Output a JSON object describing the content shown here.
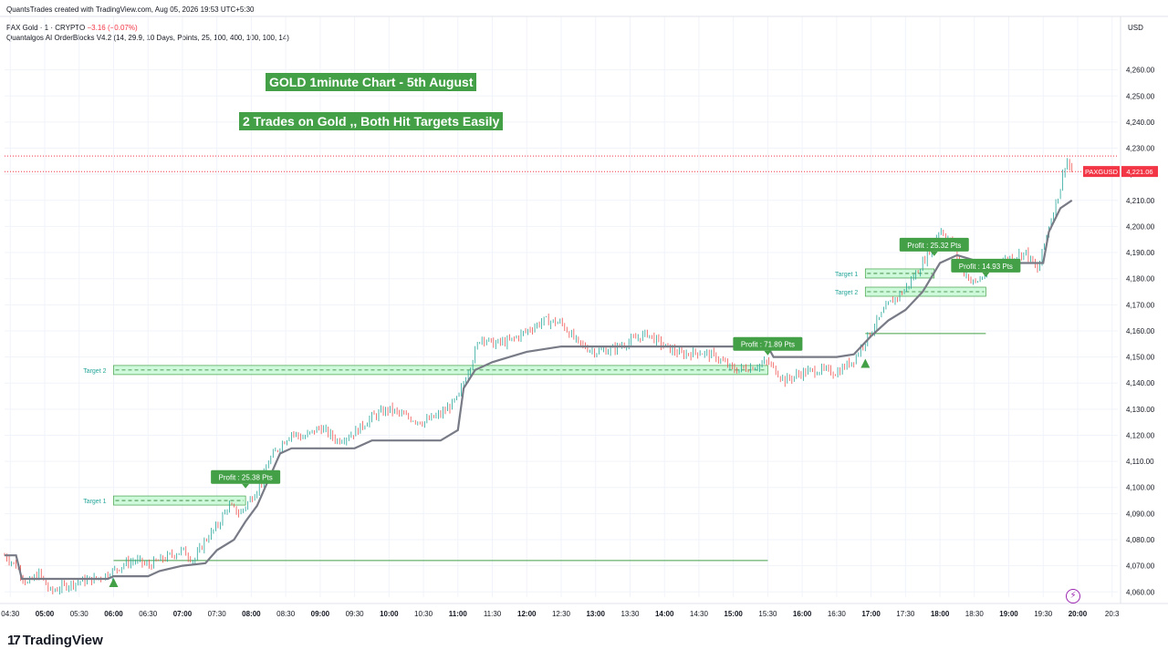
{
  "header": {
    "attribution": "QuantsTrades created with TradingView.com, Aug 05, 2026 19:53 UTC+5:30",
    "symbol": "PAX Gold · 1 · CRYPTO",
    "change": "−3.16 (−0.07%)",
    "indicator": "Quantalgos AI OrderBlocks V4.2 (14, 29.9, 10 Days, Points, 25, 100, 400, 100, 100, 14)"
  },
  "banners": {
    "title": "GOLD 1minute Chart - 5th August",
    "subtitle": "2 Trades on Gold ,, Both Hit Targets Easily"
  },
  "footer": {
    "brand": "TradingView",
    "logo_mark": "17"
  },
  "axis": {
    "currency": "USD",
    "current_symbol": "PAXGUSD",
    "current_price": "4,221.06"
  },
  "colors": {
    "up": "#26a69a",
    "down": "#ef5350",
    "target": "#43a047",
    "stair": "#787b86",
    "current": "#f23645",
    "banner": "#43a047"
  },
  "chart_data": {
    "type": "candlestick",
    "ylim": [
      4058,
      4270
    ],
    "y_ticks": [
      4060,
      4070,
      4080,
      4090,
      4100,
      4110,
      4120,
      4130,
      4140,
      4150,
      4160,
      4170,
      4180,
      4190,
      4200,
      4210,
      4220,
      4230,
      4240,
      4250,
      4260
    ],
    "y_tick_labels": [
      "4,060.00",
      "4,070.00",
      "4,080.00",
      "4,090.00",
      "4,100.00",
      "4,110.00",
      "4,120.00",
      "4,130.00",
      "4,140.00",
      "4,150.00",
      "4,160.00",
      "4,170.00",
      "4,180.00",
      "4,190.00",
      "4,200.00",
      "4,210.00",
      "4,220.00",
      "4,230.00",
      "4,240.00",
      "4,250.00",
      "4,260.00"
    ],
    "x_range": [
      "04:25",
      "20:35"
    ],
    "x_ticks": [
      {
        "t": "04:30",
        "label": "04:30",
        "bold": false
      },
      {
        "t": "05:00",
        "label": "05:00",
        "bold": true
      },
      {
        "t": "05:30",
        "label": "05:30",
        "bold": false
      },
      {
        "t": "06:00",
        "label": "06:00",
        "bold": true
      },
      {
        "t": "06:30",
        "label": "06:30",
        "bold": false
      },
      {
        "t": "07:00",
        "label": "07:00",
        "bold": true
      },
      {
        "t": "07:30",
        "label": "07:30",
        "bold": false
      },
      {
        "t": "08:00",
        "label": "08:00",
        "bold": true
      },
      {
        "t": "08:30",
        "label": "08:30",
        "bold": false
      },
      {
        "t": "09:00",
        "label": "09:00",
        "bold": true
      },
      {
        "t": "09:30",
        "label": "09:30",
        "bold": false
      },
      {
        "t": "10:00",
        "label": "10:00",
        "bold": true
      },
      {
        "t": "10:30",
        "label": "10:30",
        "bold": false
      },
      {
        "t": "11:00",
        "label": "11:00",
        "bold": true
      },
      {
        "t": "11:30",
        "label": "11:30",
        "bold": false
      },
      {
        "t": "12:00",
        "label": "12:00",
        "bold": true
      },
      {
        "t": "12:30",
        "label": "12:30",
        "bold": false
      },
      {
        "t": "13:00",
        "label": "13:00",
        "bold": true
      },
      {
        "t": "13:30",
        "label": "13:30",
        "bold": false
      },
      {
        "t": "14:00",
        "label": "14:00",
        "bold": true
      },
      {
        "t": "14:30",
        "label": "14:30",
        "bold": false
      },
      {
        "t": "15:00",
        "label": "15:00",
        "bold": true
      },
      {
        "t": "15:30",
        "label": "15:30",
        "bold": false
      },
      {
        "t": "16:00",
        "label": "16:00",
        "bold": true
      },
      {
        "t": "16:30",
        "label": "16:30",
        "bold": false
      },
      {
        "t": "17:00",
        "label": "17:00",
        "bold": true
      },
      {
        "t": "17:30",
        "label": "17:30",
        "bold": false
      },
      {
        "t": "18:00",
        "label": "18:00",
        "bold": true
      },
      {
        "t": "18:30",
        "label": "18:30",
        "bold": false
      },
      {
        "t": "19:00",
        "label": "19:00",
        "bold": true
      },
      {
        "t": "19:30",
        "label": "19:30",
        "bold": false
      },
      {
        "t": "20:00",
        "label": "20:00",
        "bold": true
      },
      {
        "t": "20:30",
        "label": "20:3",
        "bold": false
      }
    ],
    "price_path": [
      [
        "04:25",
        4074
      ],
      [
        "04:35",
        4070
      ],
      [
        "04:45",
        4063
      ],
      [
        "04:55",
        4067
      ],
      [
        "05:05",
        4060
      ],
      [
        "05:15",
        4062
      ],
      [
        "05:30",
        4064
      ],
      [
        "05:45",
        4065
      ],
      [
        "06:00",
        4068
      ],
      [
        "06:10",
        4071
      ],
      [
        "06:20",
        4072
      ],
      [
        "06:30",
        4070
      ],
      [
        "06:45",
        4073
      ],
      [
        "07:00",
        4076
      ],
      [
        "07:10",
        4072
      ],
      [
        "07:20",
        4080
      ],
      [
        "07:30",
        4085
      ],
      [
        "07:40",
        4093
      ],
      [
        "07:50",
        4090
      ],
      [
        "08:00",
        4096
      ],
      [
        "08:10",
        4103
      ],
      [
        "08:15",
        4110
      ],
      [
        "08:25",
        4116
      ],
      [
        "08:35",
        4121
      ],
      [
        "08:45",
        4119
      ],
      [
        "09:00",
        4123
      ],
      [
        "09:15",
        4118
      ],
      [
        "09:30",
        4121
      ],
      [
        "09:45",
        4127
      ],
      [
        "10:00",
        4130
      ],
      [
        "10:15",
        4127
      ],
      [
        "10:30",
        4125
      ],
      [
        "10:45",
        4128
      ],
      [
        "11:00",
        4134
      ],
      [
        "11:10",
        4146
      ],
      [
        "11:20",
        4158
      ],
      [
        "11:30",
        4155
      ],
      [
        "11:45",
        4156
      ],
      [
        "12:00",
        4160
      ],
      [
        "12:15",
        4164
      ],
      [
        "12:30",
        4163
      ],
      [
        "12:45",
        4155
      ],
      [
        "13:00",
        4152
      ],
      [
        "13:15",
        4153
      ],
      [
        "13:30",
        4156
      ],
      [
        "13:45",
        4159
      ],
      [
        "14:00",
        4154
      ],
      [
        "14:15",
        4151
      ],
      [
        "14:30",
        4152
      ],
      [
        "14:45",
        4150
      ],
      [
        "15:00",
        4145
      ],
      [
        "15:15",
        4146
      ],
      [
        "15:30",
        4148
      ],
      [
        "15:45",
        4141
      ],
      [
        "16:00",
        4144
      ],
      [
        "16:15",
        4145
      ],
      [
        "16:30",
        4144
      ],
      [
        "16:45",
        4149
      ],
      [
        "17:00",
        4160
      ],
      [
        "17:15",
        4170
      ],
      [
        "17:30",
        4176
      ],
      [
        "17:45",
        4186
      ],
      [
        "18:00",
        4199
      ],
      [
        "18:10",
        4194
      ],
      [
        "18:20",
        4183
      ],
      [
        "18:30",
        4178
      ],
      [
        "18:45",
        4184
      ],
      [
        "19:00",
        4188
      ],
      [
        "19:15",
        4190
      ],
      [
        "19:25",
        4183
      ],
      [
        "19:35",
        4200
      ],
      [
        "19:45",
        4215
      ],
      [
        "19:50",
        4226
      ],
      [
        "19:55",
        4221
      ]
    ],
    "stair_path": [
      [
        "04:25",
        4074
      ],
      [
        "04:35",
        4074
      ],
      [
        "04:40",
        4065
      ],
      [
        "05:00",
        4065
      ],
      [
        "05:15",
        4065
      ],
      [
        "05:55",
        4065
      ],
      [
        "06:00",
        4066
      ],
      [
        "06:30",
        4066
      ],
      [
        "06:40",
        4068
      ],
      [
        "07:00",
        4070
      ],
      [
        "07:20",
        4071
      ],
      [
        "07:30",
        4076
      ],
      [
        "07:45",
        4080
      ],
      [
        "07:55",
        4087
      ],
      [
        "08:05",
        4093
      ],
      [
        "08:15",
        4103
      ],
      [
        "08:25",
        4113
      ],
      [
        "08:35",
        4115
      ],
      [
        "09:15",
        4115
      ],
      [
        "09:30",
        4115
      ],
      [
        "09:45",
        4118
      ],
      [
        "10:30",
        4118
      ],
      [
        "10:45",
        4118
      ],
      [
        "11:00",
        4122
      ],
      [
        "11:05",
        4138
      ],
      [
        "11:15",
        4145
      ],
      [
        "11:30",
        4148
      ],
      [
        "11:45",
        4150
      ],
      [
        "12:00",
        4152
      ],
      [
        "12:30",
        4154
      ],
      [
        "15:30",
        4154
      ],
      [
        "15:35",
        4150
      ],
      [
        "16:30",
        4150
      ],
      [
        "16:45",
        4151
      ],
      [
        "17:00",
        4158
      ],
      [
        "17:15",
        4164
      ],
      [
        "17:30",
        4168
      ],
      [
        "17:45",
        4175
      ],
      [
        "18:00",
        4186
      ],
      [
        "18:15",
        4189
      ],
      [
        "18:30",
        4187
      ],
      [
        "18:45",
        4186
      ],
      [
        "19:30",
        4186
      ],
      [
        "19:35",
        4198
      ],
      [
        "19:45",
        4207
      ],
      [
        "19:55",
        4210
      ]
    ],
    "horizontal_lines": [
      {
        "price": 4072,
        "from": "06:00",
        "to": "15:30",
        "color": "#43a047"
      },
      {
        "price": 4159,
        "from": "16:55",
        "to": "18:40",
        "color": "#43a047"
      },
      {
        "price": 4221,
        "from": "04:25",
        "to": "20:35",
        "color": "#f23645",
        "dotted": true
      },
      {
        "price": 4227,
        "from": "04:25",
        "to": "20:35",
        "color": "#f23645",
        "dotted": true
      }
    ],
    "target_zones": [
      {
        "label": "Target 1",
        "from": "06:00",
        "to": "07:55",
        "price": 4095
      },
      {
        "label": "Target 2",
        "from": "06:00",
        "to": "15:30",
        "price": 4145
      },
      {
        "label": "Target 1",
        "from": "16:55",
        "to": "17:55",
        "price": 4182
      },
      {
        "label": "Target 2",
        "from": "16:55",
        "to": "18:40",
        "price": 4175
      }
    ],
    "profit_labels": [
      {
        "text": "Profit : 25.38 Pts",
        "t": "07:55",
        "price": 4100,
        "pointer": "down"
      },
      {
        "text": "Profit : 71.89 Pts",
        "t": "15:30",
        "price": 4151,
        "pointer": "down"
      },
      {
        "text": "Profit : 25.32 Pts",
        "t": "17:55",
        "price": 4189,
        "pointer": "down"
      },
      {
        "text": "Profit : 14.93 Pts",
        "t": "18:40",
        "price": 4181,
        "pointer": "down"
      }
    ],
    "buy_signals": [
      {
        "t": "06:00",
        "price": 4065
      },
      {
        "t": "16:55",
        "price": 4149
      }
    ]
  }
}
